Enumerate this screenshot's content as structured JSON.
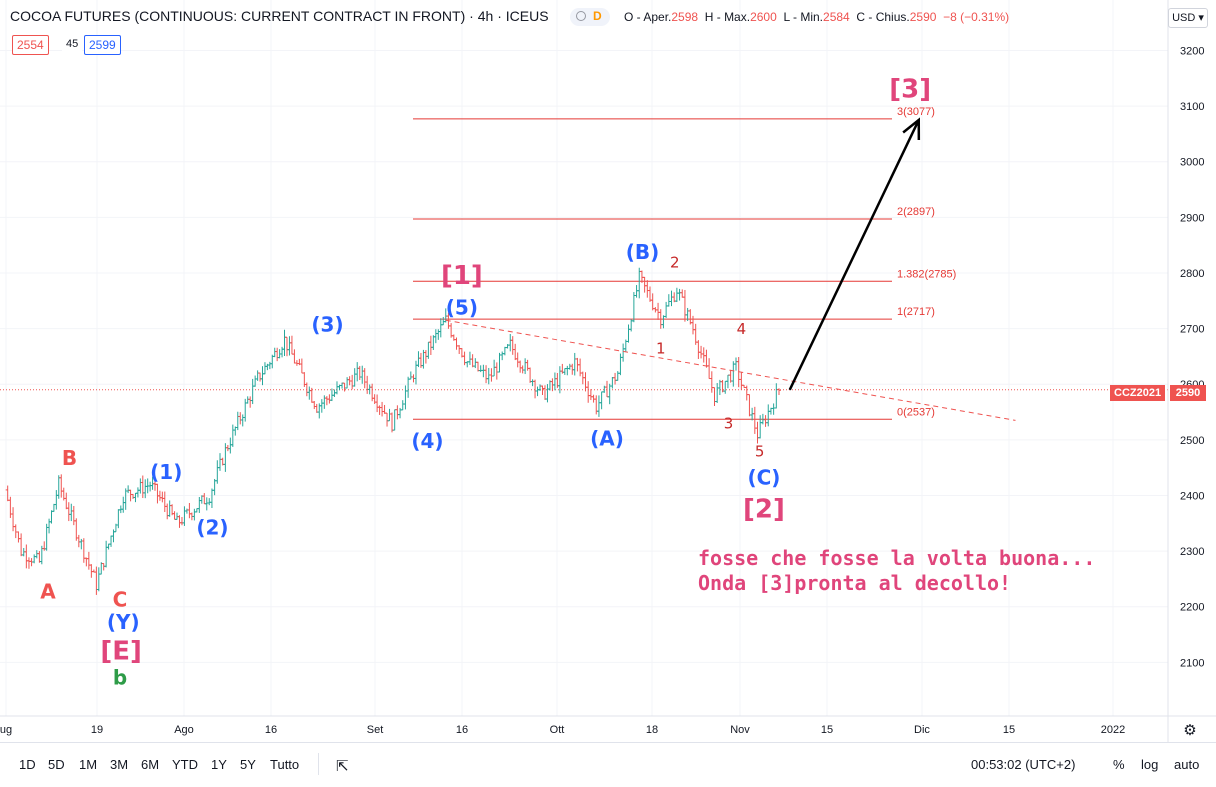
{
  "header": {
    "title": "COCOA FUTURES (CONTINUOUS: CURRENT CONTRACT IN FRONT)",
    "interval": "4h",
    "exchange": "ICEUS",
    "delay_badge": "D",
    "open_label": "O - Aper.",
    "open": "2598",
    "high_label": "H - Max.",
    "high": "2600",
    "low_label": "L - Min.",
    "low": "2584",
    "close_label": "C - Chius.",
    "close": "2590",
    "change": "−8 (−0.31%)",
    "bid": "2554",
    "spread": "45",
    "ask": "2599",
    "currency": "USD"
  },
  "price_tag": {
    "symbol": "CCZ2021",
    "value": "2590"
  },
  "bottom_bar": {
    "timeframes": [
      "1D",
      "5D",
      "1M",
      "3M",
      "6M",
      "YTD",
      "1Y",
      "5Y",
      "Tutto"
    ],
    "clock": "00:53:02 (UTC+2)",
    "percent": "%",
    "log": "log",
    "auto": "auto"
  },
  "note": {
    "line1": "fosse che fosse la volta buona...",
    "line2": "Onda [3]pronta al decollo!"
  },
  "chart_data": {
    "type": "ohlc",
    "interval": "4h",
    "y_axis": {
      "ticks": [
        2100,
        2200,
        2300,
        2400,
        2500,
        2600,
        2700,
        2800,
        2900,
        3000,
        3100,
        3200
      ],
      "range": [
        2000,
        3230
      ],
      "position": "right"
    },
    "x_axis": {
      "labels": [
        "ug",
        "19",
        "Ago",
        "16",
        "Set",
        "16",
        "Ott",
        "18",
        "Nov",
        "15",
        "Dic",
        "15",
        "2022"
      ]
    },
    "path": [
      {
        "x": 0,
        "y": 2410
      },
      {
        "x": 1.5,
        "y": 2300
      },
      {
        "x": 3.2,
        "y": 2280
      },
      {
        "x": 5,
        "y": 2420
      },
      {
        "x": 8.5,
        "y": 2240
      },
      {
        "x": 11,
        "y": 2400
      },
      {
        "x": 13.5,
        "y": 2420
      },
      {
        "x": 16,
        "y": 2350
      },
      {
        "x": 19,
        "y": 2400
      },
      {
        "x": 20.5,
        "y": 2480
      },
      {
        "x": 23.5,
        "y": 2610
      },
      {
        "x": 26,
        "y": 2680
      },
      {
        "x": 29,
        "y": 2560
      },
      {
        "x": 33,
        "y": 2620
      },
      {
        "x": 36,
        "y": 2530
      },
      {
        "x": 38,
        "y": 2620
      },
      {
        "x": 41,
        "y": 2715
      },
      {
        "x": 43,
        "y": 2640
      },
      {
        "x": 45,
        "y": 2610
      },
      {
        "x": 47,
        "y": 2670
      },
      {
        "x": 50,
        "y": 2580
      },
      {
        "x": 53,
        "y": 2640
      },
      {
        "x": 55,
        "y": 2560
      },
      {
        "x": 57,
        "y": 2620
      },
      {
        "x": 59,
        "y": 2790
      },
      {
        "x": 61,
        "y": 2720
      },
      {
        "x": 62.5,
        "y": 2770
      },
      {
        "x": 64,
        "y": 2700
      },
      {
        "x": 66,
        "y": 2580
      },
      {
        "x": 68,
        "y": 2630
      },
      {
        "x": 70,
        "y": 2510
      },
      {
        "x": 72,
        "y": 2590
      }
    ],
    "horizontal_levels": [
      {
        "label": "3(3077)",
        "value": 3077
      },
      {
        "label": "2(2897)",
        "value": 2897
      },
      {
        "label": "1.382(2785)",
        "value": 2785
      },
      {
        "label": "1(2717)",
        "value": 2717
      },
      {
        "label": "0(2537)",
        "value": 2537
      }
    ],
    "trendline": {
      "from": {
        "x": 41,
        "y": 2715
      },
      "to": {
        "x": 94,
        "y": 2535
      },
      "style": "dashed"
    },
    "arrow": {
      "from": {
        "x": 73,
        "y": 2590
      },
      "to": {
        "x": 85,
        "y": 3075
      }
    },
    "current_price": 2590,
    "wave_labels": [
      {
        "text": "A",
        "x": 4,
        "y": 2215,
        "color": "#ef5350"
      },
      {
        "text": "B",
        "x": 6,
        "y": 2455,
        "color": "#ef5350"
      },
      {
        "text": "C",
        "x": 10.7,
        "y": 2200,
        "color": "#ef5350"
      },
      {
        "text": "(Y)",
        "x": 11,
        "y": 2160,
        "color": "#2962ff"
      },
      {
        "text": "[E]",
        "x": 10.8,
        "y": 2105,
        "color": "#e0457b"
      },
      {
        "text": "b",
        "x": 10.7,
        "y": 2060,
        "color": "#2e9c48"
      },
      {
        "text": "(1)",
        "x": 15,
        "y": 2430,
        "color": "#2962ff"
      },
      {
        "text": "(2)",
        "x": 19.3,
        "y": 2330,
        "color": "#2962ff"
      },
      {
        "text": "(3)",
        "x": 30,
        "y": 2695,
        "color": "#2962ff"
      },
      {
        "text": "(4)",
        "x": 39.3,
        "y": 2485,
        "color": "#2962ff"
      },
      {
        "text": "(5)",
        "x": 42.5,
        "y": 2725,
        "color": "#2962ff"
      },
      {
        "text": "[1]",
        "x": 42.5,
        "y": 2780,
        "color": "#e0457b"
      },
      {
        "text": "(A)",
        "x": 56,
        "y": 2490,
        "color": "#2962ff"
      },
      {
        "text": "(B)",
        "x": 59.3,
        "y": 2825,
        "color": "#2962ff"
      },
      {
        "text": "2",
        "x": 62.3,
        "y": 2810,
        "color": "#c62828"
      },
      {
        "text": "1",
        "x": 61,
        "y": 2655,
        "color": "#c62828"
      },
      {
        "text": "4",
        "x": 68.5,
        "y": 2690,
        "color": "#c62828"
      },
      {
        "text": "3",
        "x": 67.3,
        "y": 2520,
        "color": "#c62828"
      },
      {
        "text": "5",
        "x": 70.2,
        "y": 2470,
        "color": "#c62828"
      },
      {
        "text": "(C)",
        "x": 70.6,
        "y": 2420,
        "color": "#2962ff"
      },
      {
        "text": "[2]",
        "x": 70.6,
        "y": 2360,
        "color": "#e0457b"
      },
      {
        "text": "[3]",
        "x": 84.2,
        "y": 3115,
        "color": "#e0457b"
      }
    ]
  }
}
